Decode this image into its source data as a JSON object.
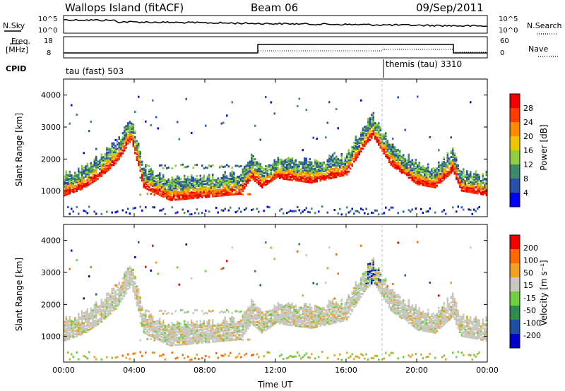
{
  "header": {
    "site": "Wallops Island (fitACF)",
    "beam": "Beam 06",
    "date": "09/Sep/2011"
  },
  "params": {
    "nsky_label": "N.Sky",
    "nsearch_label": "N.Search",
    "freq_label_1": "Freq.",
    "freq_label_2": "[MHz]",
    "nave_label": "Nave",
    "cpid_label": "CPID",
    "nsky_ticks": [
      "10^5",
      "10^0"
    ],
    "nsearch_ticks": [
      "10^5",
      "10^0"
    ],
    "freq_ticks": [
      "18",
      "8"
    ],
    "nave_ticks": [
      "60",
      "0"
    ],
    "cpid_segments": [
      {
        "label": "tau (fast) 503",
        "start_hour": 0
      },
      {
        "label": "themis (tau) 3310",
        "start_hour": 18.0
      }
    ]
  },
  "chart_data": [
    {
      "type": "heatmap",
      "name": "power",
      "ylabel": "Slant Range [km]",
      "yticks": [
        "1000",
        "2000",
        "3000",
        "4000"
      ],
      "ylim": [
        200,
        4500
      ],
      "colorbar_label": "Power [dB]",
      "colorbar_ticks": [
        "4",
        "8",
        "12",
        "16",
        "20",
        "24",
        "28"
      ],
      "colors": [
        "#0000ff",
        "#2a4fa8",
        "#3d8a6b",
        "#8fcf3f",
        "#f2c400",
        "#ff8a00",
        "#ff3b00",
        "#ee0000"
      ],
      "ridge_range_km": [
        [
          0,
          1050
        ],
        [
          1,
          1250
        ],
        [
          2,
          1600
        ],
        [
          3,
          2100
        ],
        [
          3.8,
          2800
        ],
        [
          4.5,
          1300
        ],
        [
          6,
          900
        ],
        [
          8,
          1000
        ],
        [
          10,
          1100
        ],
        [
          10.6,
          1600
        ],
        [
          11.2,
          1300
        ],
        [
          12,
          1600
        ],
        [
          14,
          1450
        ],
        [
          16,
          1700
        ],
        [
          17,
          2600
        ],
        [
          17.5,
          2900
        ],
        [
          18.5,
          2000
        ],
        [
          20,
          1400
        ],
        [
          21,
          1300
        ],
        [
          22,
          1800
        ],
        [
          22.5,
          1200
        ],
        [
          24,
          1050
        ]
      ]
    },
    {
      "type": "heatmap",
      "name": "velocity",
      "ylabel": "Slant Range [km]",
      "xlabel": "Time UT",
      "yticks": [
        "1000",
        "2000",
        "3000",
        "4000"
      ],
      "ylim": [
        200,
        4500
      ],
      "colorbar_label": "Velocity [m s⁻¹]",
      "colorbar_ticks": [
        "200",
        "100",
        "50",
        "15",
        "-15",
        "-50",
        "-100",
        "-200"
      ],
      "colors": [
        "#0000cc",
        "#1f4fa0",
        "#2f8a4f",
        "#6fcf3f",
        "#c8c8c0",
        "#f2a020",
        "#ff6a00",
        "#ee0000"
      ],
      "xticks": [
        "00:00",
        "04:00",
        "08:00",
        "12:00",
        "16:00",
        "20:00",
        "00:00"
      ],
      "xlim_hours": [
        0,
        24
      ]
    }
  ]
}
